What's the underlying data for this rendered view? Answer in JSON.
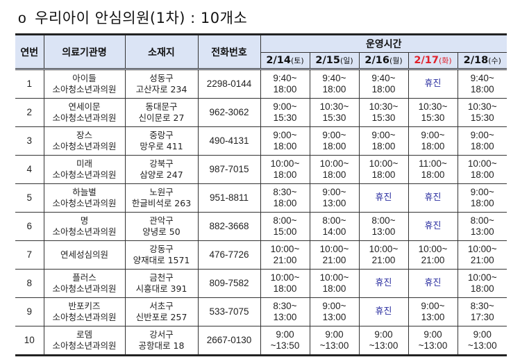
{
  "title": {
    "bullet": "o",
    "text": "우리아이 안심의원(1차) : 10개소"
  },
  "table": {
    "headers": {
      "no": "연번",
      "name": "의료기관명",
      "address": "소재지",
      "phone": "전화번호",
      "hours_group": "운영시간",
      "days": [
        {
          "date": "2/14",
          "dow": "(토)",
          "holiday": false
        },
        {
          "date": "2/15",
          "dow": "(일)",
          "holiday": false
        },
        {
          "date": "2/16",
          "dow": "(월)",
          "holiday": false
        },
        {
          "date": "2/17",
          "dow": "(화)",
          "holiday": true
        },
        {
          "date": "2/18",
          "dow": "(수)",
          "holiday": false
        }
      ]
    },
    "closed_color": "#2b2fa0",
    "holiday_color": "#e0202a",
    "header_bg": "#dbe4f5",
    "rows": [
      {
        "no": "1",
        "name": [
          "아이들",
          "소아청소년과의원"
        ],
        "address": [
          "성동구",
          "고산자로 234"
        ],
        "phone": "2298-0144",
        "hours": [
          [
            "9:40~",
            "18:00"
          ],
          [
            "9:40~",
            "18:00"
          ],
          [
            "9:40~",
            "18:00"
          ],
          [
            "휴진"
          ],
          [
            "9:40~",
            "18:00"
          ]
        ]
      },
      {
        "no": "2",
        "name": [
          "연세이문",
          "소아청소년과의원"
        ],
        "address": [
          "동대문구",
          "신이문로 27"
        ],
        "phone": "962-3062",
        "hours": [
          [
            "9:00~",
            "15:30"
          ],
          [
            "10:30~",
            "15:30"
          ],
          [
            "10:30~",
            "15:30"
          ],
          [
            "10:30~",
            "15:30"
          ],
          [
            "10:30~",
            "15:30"
          ]
        ]
      },
      {
        "no": "3",
        "name": [
          "장스",
          "소아청소년과의원"
        ],
        "address": [
          "중랑구",
          "망우로 411"
        ],
        "phone": "490-4131",
        "hours": [
          [
            "9:00~",
            "18:00"
          ],
          [
            "9:00~",
            "18:00"
          ],
          [
            "9:00~",
            "18:00"
          ],
          [
            "9:00~",
            "18:00"
          ],
          [
            "9:00~",
            "18:00"
          ]
        ]
      },
      {
        "no": "4",
        "name": [
          "미래",
          "소아청소년과의원"
        ],
        "address": [
          "강북구",
          "삼양로 247"
        ],
        "phone": "987-7015",
        "hours": [
          [
            "10:00~",
            "18:00"
          ],
          [
            "10:00~",
            "18:00"
          ],
          [
            "10:00~",
            "18:00"
          ],
          [
            "11:00~",
            "18:00"
          ],
          [
            "10:00~",
            "18:00"
          ]
        ]
      },
      {
        "no": "5",
        "name": [
          "하늘별",
          "소아청소년과의원"
        ],
        "address": [
          "노원구",
          "한글비석로 263"
        ],
        "phone": "951-8811",
        "hours": [
          [
            "8:30~",
            "18:00"
          ],
          [
            "9:00~",
            "13:00"
          ],
          [
            "휴진"
          ],
          [
            "휴진"
          ],
          [
            "9:00~",
            "18:00"
          ]
        ]
      },
      {
        "no": "6",
        "name": [
          "명",
          "소아청소년과의원"
        ],
        "address": [
          "관악구",
          "양녕로 50"
        ],
        "phone": "882-3668",
        "hours": [
          [
            "8:00~",
            "15:00"
          ],
          [
            "8:00~",
            "14:00"
          ],
          [
            "8:00~",
            "13:00"
          ],
          [
            "휴진"
          ],
          [
            "8:00~",
            "13:00"
          ]
        ]
      },
      {
        "no": "7",
        "name": [
          "연세성심의원"
        ],
        "address": [
          "강동구",
          "양재대로 1571"
        ],
        "phone": "476-7726",
        "hours": [
          [
            "10:00~",
            "21:00"
          ],
          [
            "10:00~",
            "21:00"
          ],
          [
            "10:00~",
            "21:00"
          ],
          [
            "10:00~",
            "21:00"
          ],
          [
            "10:00~",
            "21:00"
          ]
        ]
      },
      {
        "no": "8",
        "name": [
          "플러스",
          "소아청소년과의원"
        ],
        "address": [
          "금천구",
          "시흥대로 391"
        ],
        "phone": "809-7582",
        "hours": [
          [
            "10:00~",
            "18:00"
          ],
          [
            "10:00~",
            "18:00"
          ],
          [
            "휴진"
          ],
          [
            "휴진"
          ],
          [
            "10:00~",
            "18:00"
          ]
        ]
      },
      {
        "no": "9",
        "name": [
          "반포키즈",
          "소아청소년과의원"
        ],
        "address": [
          "서초구",
          "신반포로 257"
        ],
        "phone": "533-7075",
        "hours": [
          [
            "8:30~",
            "13:00"
          ],
          [
            "9:00~",
            "13:00"
          ],
          [
            "휴진"
          ],
          [
            "9:00~",
            "13:00"
          ],
          [
            "8:30~",
            "17:30"
          ]
        ]
      },
      {
        "no": "10",
        "name": [
          "로뎀",
          "소아청소년과의원"
        ],
        "address": [
          "강서구",
          "공항대로 18"
        ],
        "phone": "2667-0130",
        "hours": [
          [
            "9:00",
            "~13:50"
          ],
          [
            "9:00",
            "~13:00"
          ],
          [
            "9:00",
            "~13:00"
          ],
          [
            "9:00",
            "~13:00"
          ],
          [
            "9:00",
            "~13:00"
          ]
        ]
      }
    ]
  }
}
